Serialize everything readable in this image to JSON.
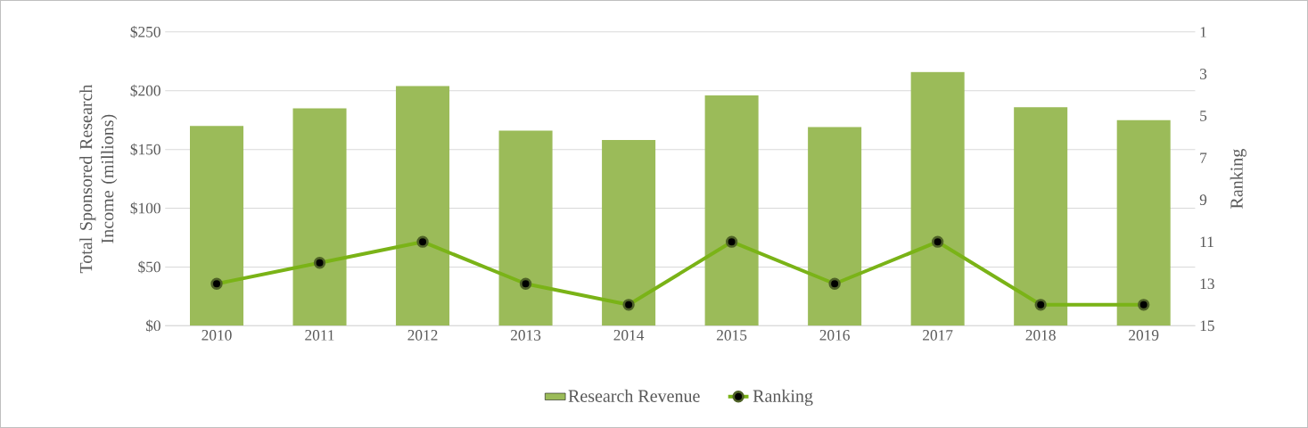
{
  "chart_data": {
    "type": "bar",
    "categories": [
      "2010",
      "2011",
      "2012",
      "2013",
      "2014",
      "2015",
      "2016",
      "2017",
      "2018",
      "2019"
    ],
    "ylabel": "Total Sponsored Research Income (millions)",
    "y2label": "Ranking",
    "ylim": [
      0,
      250
    ],
    "yticks": [
      {
        "value": 0,
        "label": "$0"
      },
      {
        "value": 50,
        "label": "$50"
      },
      {
        "value": 100,
        "label": "$100"
      },
      {
        "value": 150,
        "label": "$150"
      },
      {
        "value": 200,
        "label": "$200"
      },
      {
        "value": 250,
        "label": "$250"
      }
    ],
    "y2lim": [
      15,
      1
    ],
    "y2ticks": [
      1,
      3,
      5,
      7,
      9,
      11,
      13,
      15
    ],
    "grid": "y",
    "legend": "bottom",
    "marker": "circle",
    "line_style": "solid",
    "series": [
      {
        "name": "Research Revenue",
        "color": "#9bbb59",
        "values": [
          170,
          185,
          204,
          166,
          158,
          196,
          169,
          216,
          186,
          175
        ]
      },
      {
        "name": "Ranking",
        "type": "line",
        "axis": "y2",
        "color": "#7ab317",
        "values": [
          13,
          12,
          11,
          13,
          14,
          11,
          13,
          11,
          14,
          14
        ]
      }
    ]
  }
}
